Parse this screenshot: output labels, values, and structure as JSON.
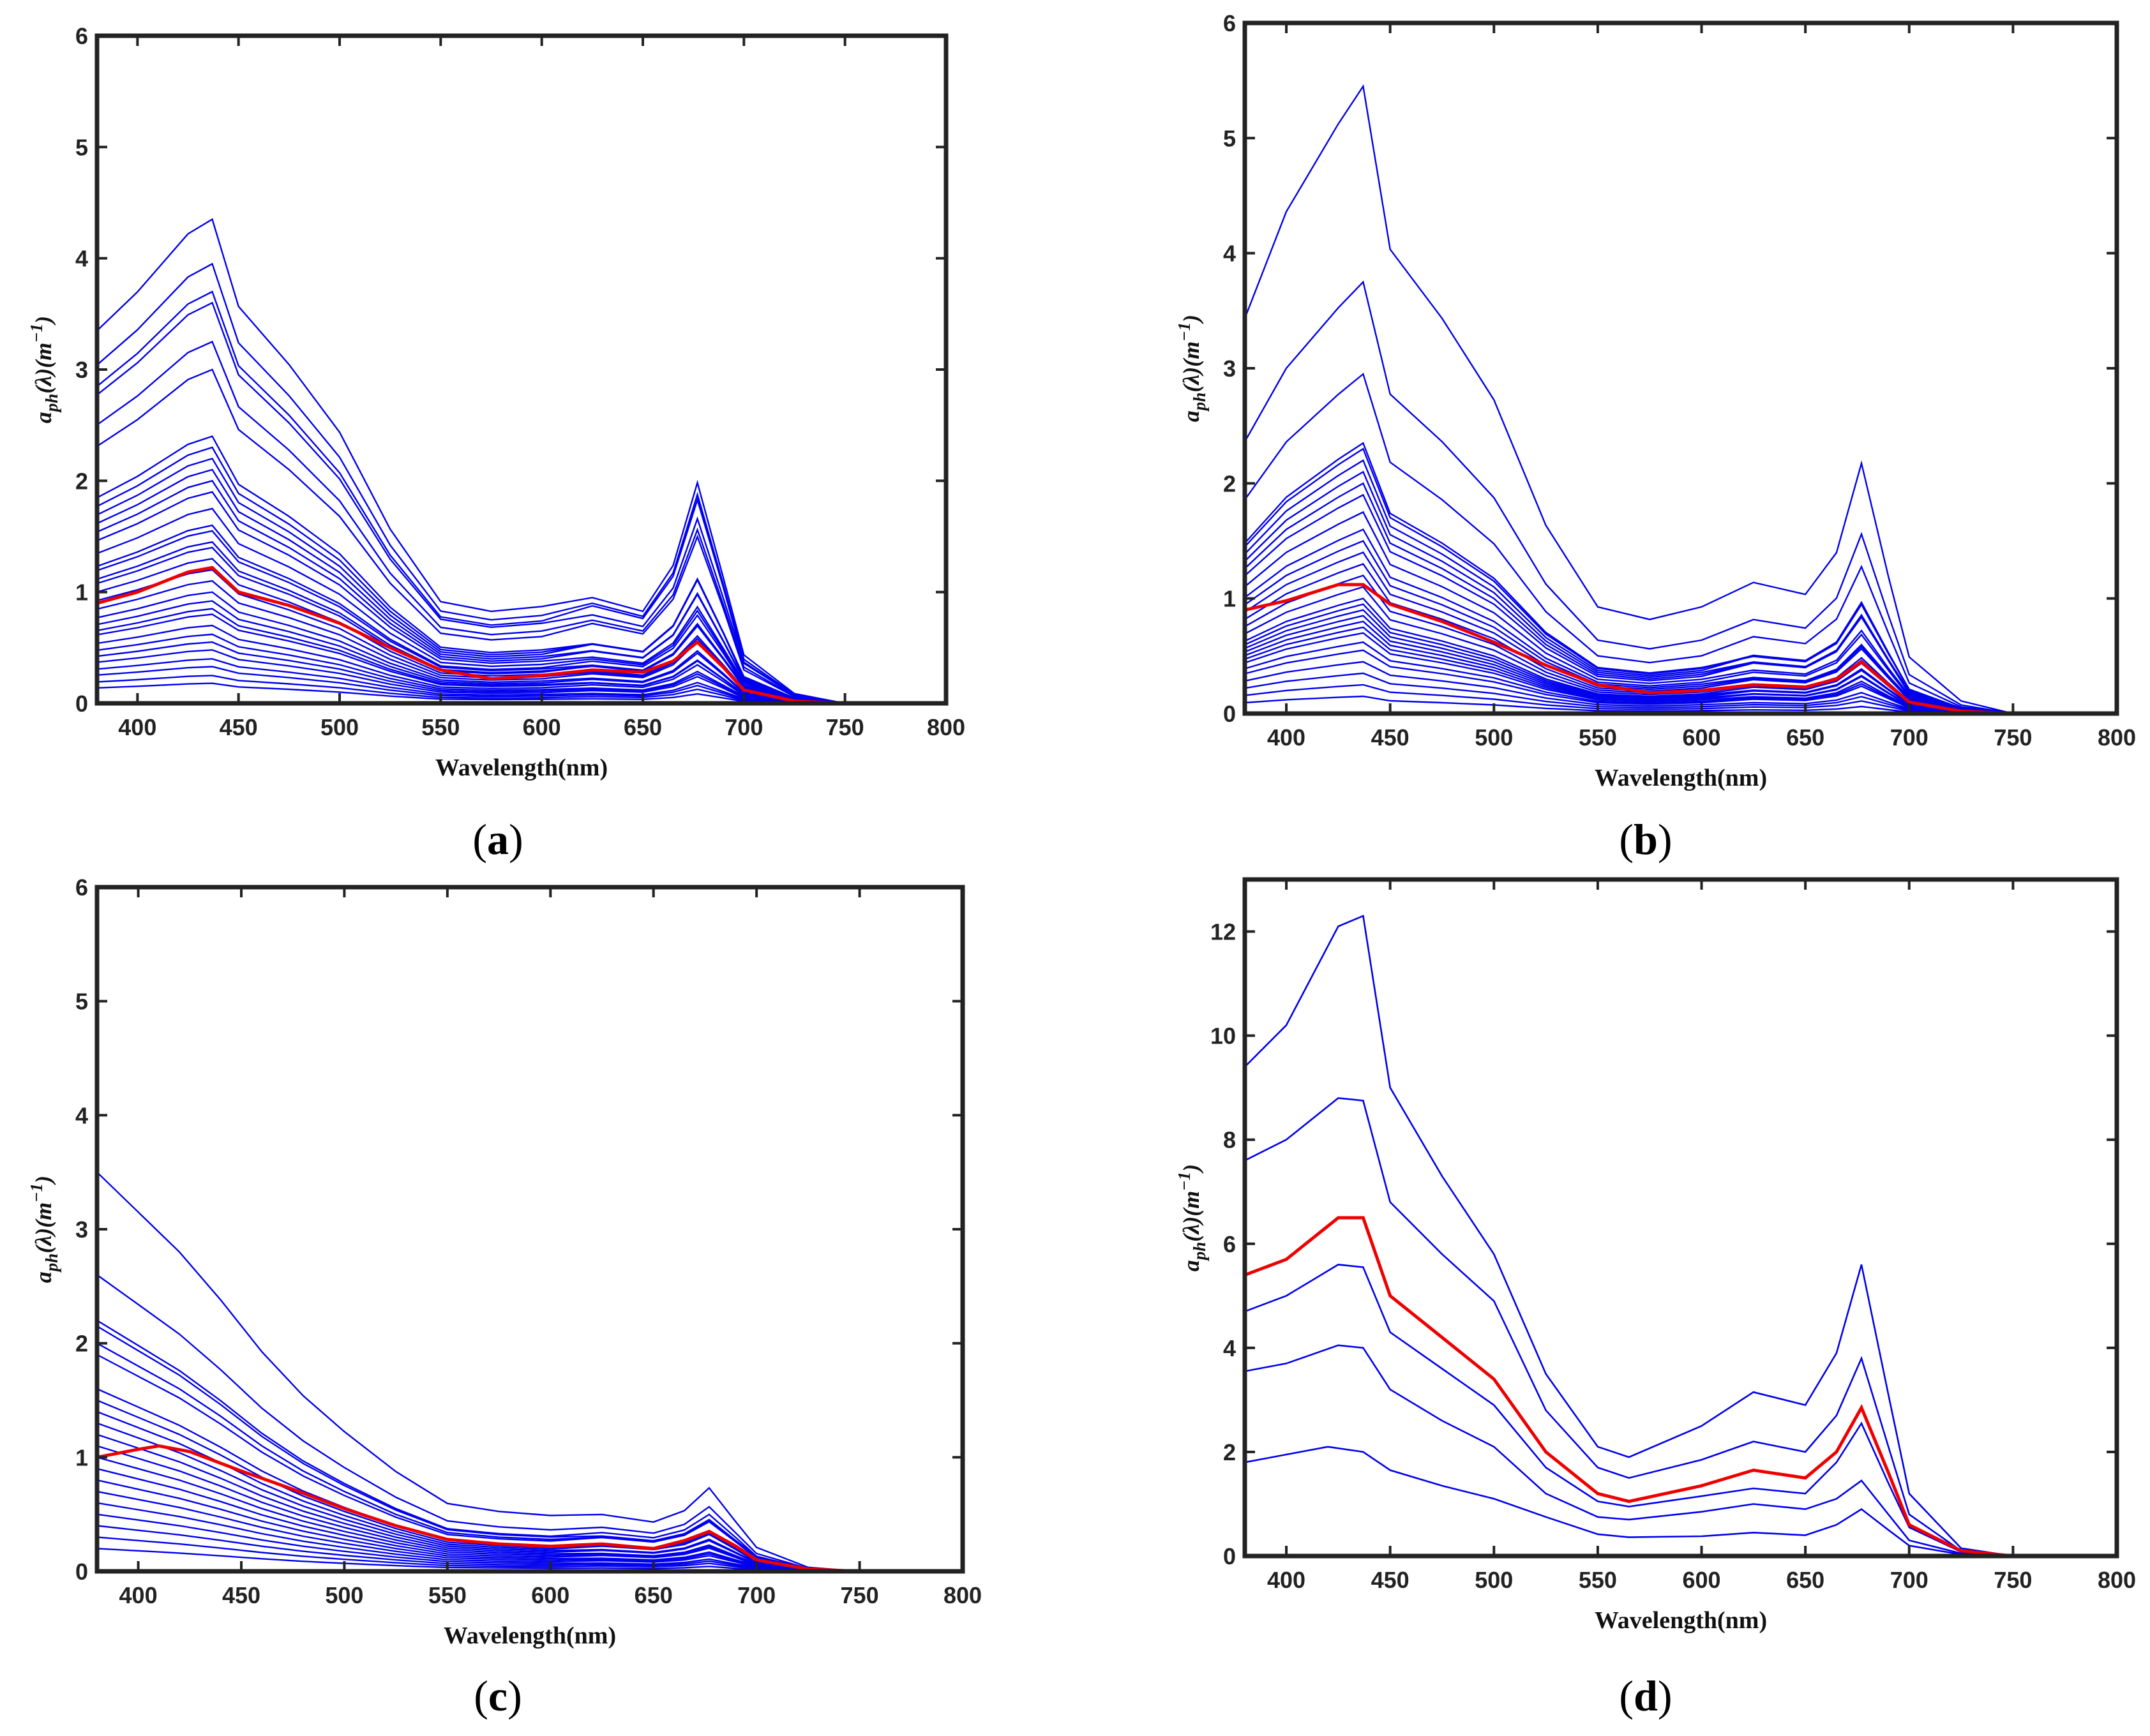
{
  "chart_data": [
    {
      "type": "line",
      "panel_label": "a",
      "xlabel": "Wavelength(nm)",
      "ylabel": {
        "base": "a",
        "sub": "ph",
        "mid": "(λ)(",
        "unit": "m",
        "sup": "−1",
        "end": ")"
      },
      "xlim": [
        380,
        800
      ],
      "ylim": [
        0,
        6
      ],
      "xticks": [
        400,
        450,
        500,
        550,
        600,
        650,
        700,
        750,
        800
      ],
      "yticks": [
        0,
        1,
        2,
        3,
        4,
        5,
        6
      ],
      "grid": false,
      "colors": {
        "spectra": "#0000ee",
        "mean": "#ee0000"
      },
      "mean_series": {
        "name": "mean",
        "x": [
          380,
          400,
          425,
          437,
          450,
          475,
          500,
          525,
          550,
          575,
          600,
          625,
          650,
          665,
          677,
          690,
          700,
          725,
          750,
          800
        ],
        "y": [
          0.9,
          1.0,
          1.18,
          1.22,
          1.0,
          0.88,
          0.72,
          0.5,
          0.3,
          0.22,
          0.25,
          0.3,
          0.28,
          0.38,
          0.55,
          0.32,
          0.12,
          0.02,
          0,
          0
        ]
      },
      "series_peaks": [
        4.35,
        3.95,
        3.7,
        3.6,
        3.25,
        3.0,
        2.4,
        2.3,
        2.2,
        2.1,
        2.0,
        1.9,
        1.75,
        1.6,
        1.55,
        1.45,
        1.4,
        1.3,
        1.2,
        1.1,
        1.0,
        0.92,
        0.85,
        0.8,
        0.7,
        0.62,
        0.55,
        0.48,
        0.4,
        0.33,
        0.25,
        0.18
      ]
    },
    {
      "type": "line",
      "panel_label": "b",
      "xlabel": "Wavelength(nm)",
      "ylabel": {
        "base": "a",
        "sub": "ph",
        "mid": "(λ)(",
        "unit": "m",
        "sup": "−1",
        "end": ")"
      },
      "xlim": [
        380,
        800
      ],
      "ylim": [
        0,
        6
      ],
      "xticks": [
        400,
        450,
        500,
        550,
        600,
        650,
        700,
        750,
        800
      ],
      "yticks": [
        0,
        1,
        2,
        3,
        4,
        5,
        6
      ],
      "grid": false,
      "colors": {
        "spectra": "#0000ee",
        "mean": "#ee0000"
      },
      "mean_series": {
        "name": "mean",
        "x": [
          380,
          400,
          425,
          437,
          450,
          475,
          500,
          525,
          550,
          575,
          600,
          625,
          650,
          665,
          677,
          690,
          700,
          725,
          750,
          800
        ],
        "y": [
          0.9,
          0.98,
          1.12,
          1.12,
          0.95,
          0.8,
          0.62,
          0.42,
          0.25,
          0.18,
          0.2,
          0.25,
          0.23,
          0.3,
          0.45,
          0.25,
          0.1,
          0.02,
          0,
          0
        ]
      },
      "series_peaks": [
        5.45,
        3.75,
        2.95,
        2.35,
        2.3,
        2.2,
        2.1,
        2.0,
        1.9,
        1.75,
        1.6,
        1.5,
        1.4,
        1.3,
        1.2,
        1.1,
        1.0,
        0.95,
        0.9,
        0.85,
        0.8,
        0.75,
        0.7,
        0.62,
        0.55,
        0.45,
        0.35,
        0.25,
        0.15
      ]
    },
    {
      "type": "line",
      "panel_label": "c",
      "xlabel": "Wavelength(nm)",
      "ylabel": {
        "base": "a",
        "sub": "ph",
        "mid": "(λ)(",
        "unit": "m",
        "sup": "−1",
        "end": ")"
      },
      "xlim": [
        380,
        800
      ],
      "ylim": [
        0,
        6
      ],
      "xticks": [
        400,
        450,
        500,
        550,
        600,
        650,
        700,
        750,
        800
      ],
      "yticks": [
        0,
        1,
        2,
        3,
        4,
        5,
        6
      ],
      "grid": false,
      "colors": {
        "spectra": "#0000ee",
        "mean": "#ee0000"
      },
      "mean_series": {
        "name": "mean",
        "x": [
          380,
          400,
          410,
          425,
          450,
          475,
          500,
          525,
          550,
          575,
          600,
          625,
          650,
          665,
          677,
          690,
          700,
          725,
          750,
          800
        ],
        "y": [
          1.0,
          1.07,
          1.1,
          1.05,
          0.88,
          0.72,
          0.55,
          0.4,
          0.28,
          0.24,
          0.22,
          0.24,
          0.2,
          0.27,
          0.35,
          0.22,
          0.1,
          0.02,
          0,
          0
        ]
      },
      "series_peaks": [
        3.5,
        2.6,
        2.2,
        2.15,
        2.0,
        1.9,
        1.6,
        1.5,
        1.4,
        1.3,
        1.2,
        1.1,
        1.0,
        0.9,
        0.8,
        0.7,
        0.6,
        0.5,
        0.4,
        0.3,
        0.2
      ]
    },
    {
      "type": "line",
      "panel_label": "d",
      "xlabel": "Wavelength(nm)",
      "ylabel": {
        "base": "a",
        "sub": "ph",
        "mid": "(λ)(",
        "unit": "m",
        "sup": "−1",
        "end": ")"
      },
      "xlim": [
        380,
        800
      ],
      "ylim": [
        0,
        13
      ],
      "xticks": [
        400,
        450,
        500,
        550,
        600,
        650,
        700,
        750,
        800
      ],
      "yticks": [
        0,
        2,
        4,
        6,
        8,
        10,
        12
      ],
      "grid": false,
      "colors": {
        "spectra": "#0000ee",
        "mean": "#ee0000"
      },
      "mean_series": {
        "name": "mean",
        "x": [
          380,
          400,
          425,
          437,
          450,
          475,
          500,
          525,
          550,
          565,
          600,
          625,
          650,
          665,
          677,
          690,
          700,
          725,
          750,
          800
        ],
        "y": [
          5.4,
          5.7,
          6.5,
          6.5,
          5.0,
          4.2,
          3.4,
          2.0,
          1.2,
          1.05,
          1.35,
          1.65,
          1.5,
          2.0,
          2.85,
          1.6,
          0.6,
          0.1,
          0,
          0
        ]
      },
      "series": [
        {
          "name": "spectrum 1",
          "x": [
            380,
            400,
            425,
            437,
            450,
            475,
            500,
            525,
            550,
            565,
            600,
            625,
            650,
            665,
            677,
            690,
            700,
            725,
            750,
            800
          ],
          "y": [
            9.4,
            10.2,
            12.1,
            12.3,
            9.0,
            7.3,
            5.8,
            3.5,
            2.1,
            1.9,
            2.5,
            3.15,
            2.9,
            3.9,
            5.6,
            3.1,
            1.2,
            0.15,
            0,
            0
          ]
        },
        {
          "name": "spectrum 2",
          "x": [
            380,
            400,
            425,
            437,
            450,
            475,
            500,
            525,
            550,
            565,
            600,
            625,
            650,
            665,
            677,
            690,
            700,
            725,
            750,
            800
          ],
          "y": [
            7.6,
            8.0,
            8.8,
            8.75,
            6.8,
            5.8,
            4.9,
            2.8,
            1.7,
            1.5,
            1.85,
            2.2,
            2.0,
            2.7,
            3.8,
            2.1,
            0.8,
            0.1,
            0,
            0
          ]
        },
        {
          "name": "spectrum 3",
          "x": [
            380,
            400,
            425,
            437,
            450,
            475,
            500,
            525,
            550,
            565,
            600,
            625,
            650,
            665,
            677,
            690,
            700,
            725,
            750,
            800
          ],
          "y": [
            4.7,
            5.0,
            5.6,
            5.55,
            4.3,
            3.6,
            2.9,
            1.7,
            1.05,
            0.95,
            1.15,
            1.3,
            1.2,
            1.8,
            2.55,
            1.4,
            0.55,
            0.08,
            0,
            0
          ]
        },
        {
          "name": "spectrum 4",
          "x": [
            380,
            400,
            425,
            437,
            450,
            475,
            500,
            525,
            550,
            565,
            600,
            625,
            650,
            665,
            677,
            690,
            700,
            725,
            750,
            800
          ],
          "y": [
            3.55,
            3.7,
            4.05,
            4.0,
            3.2,
            2.6,
            2.1,
            1.2,
            0.75,
            0.7,
            0.85,
            1.0,
            0.9,
            1.1,
            1.45,
            0.8,
            0.3,
            0.05,
            0,
            0
          ]
        },
        {
          "name": "spectrum 5",
          "x": [
            380,
            400,
            420,
            437,
            450,
            475,
            500,
            525,
            550,
            565,
            600,
            625,
            650,
            665,
            677,
            690,
            700,
            725,
            750,
            800
          ],
          "y": [
            1.8,
            1.95,
            2.1,
            2.0,
            1.65,
            1.35,
            1.1,
            0.75,
            0.42,
            0.36,
            0.38,
            0.45,
            0.4,
            0.6,
            0.9,
            0.5,
            0.2,
            0.03,
            0,
            0
          ]
        }
      ]
    }
  ]
}
